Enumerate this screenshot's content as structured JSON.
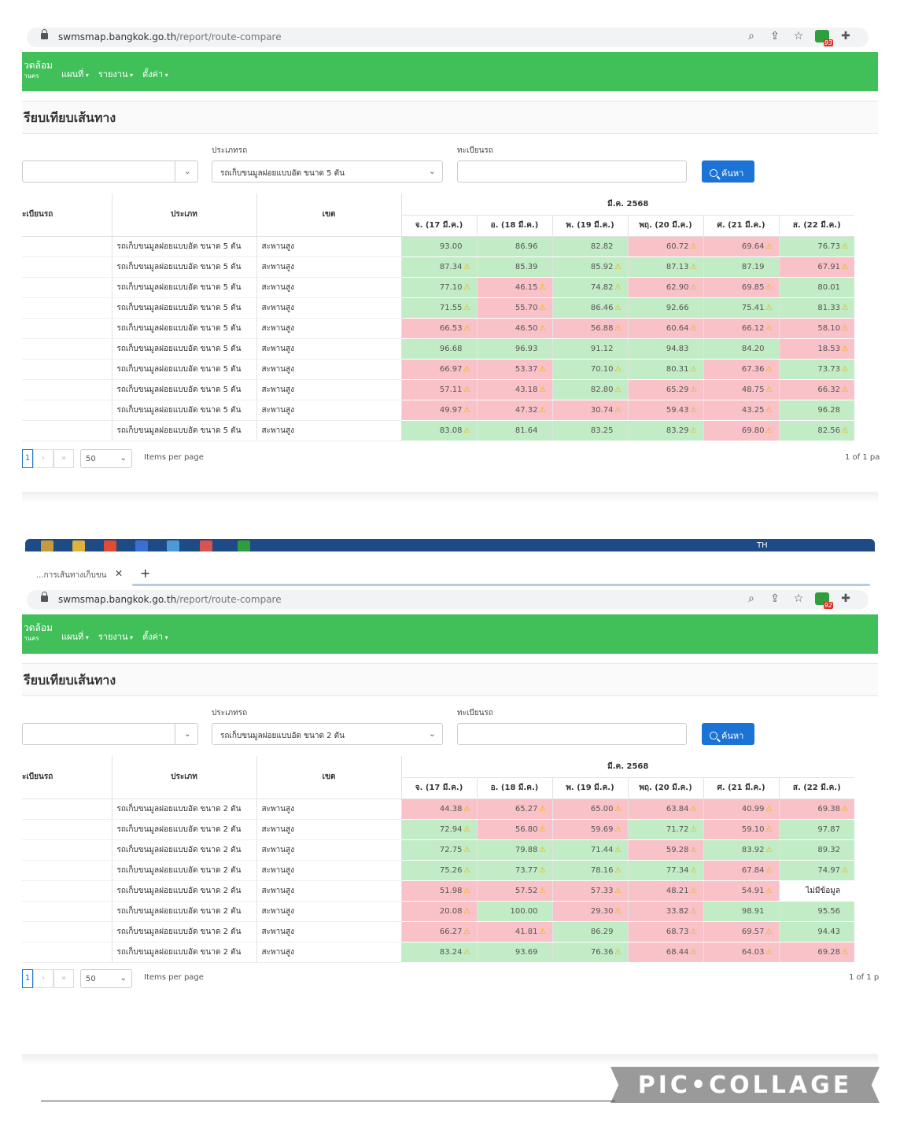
{
  "screenshots": [
    {
      "tab": null,
      "url_host": "swmsmap.bangkok.go.th",
      "url_path": "/report/route-compare",
      "ext_badge": "93",
      "brand": "วดล้อม",
      "brand_sub": "านคร",
      "menu": [
        "แผนที่",
        "รายงาน",
        "ตั้งค่า"
      ],
      "page_title": "รียบเทียบเส้นทาง",
      "labels": {
        "type": "ประเภทรถ",
        "plate": "ทะเบียนรถ"
      },
      "vehicle_type_value": "รถเก็บขนมูลฝอยแบบอัด ขนาด 5 ตัน",
      "search_label": "ค้นหา",
      "columns": {
        "plate": "ะเบียนรถ",
        "type": "ประเภท",
        "zone": "เขต",
        "month": "มี.ค. 2568",
        "days": [
          "จ. (17 มี.ค.)",
          "อ. (18 มี.ค.)",
          "พ. (19 มี.ค.)",
          "พฤ. (20 มี.ค.)",
          "ศ. (21 มี.ค.)",
          "ส. (22 มี.ค.)"
        ]
      },
      "rows": [
        {
          "type": "รถเก็บขนมูลฝอยแบบอัด ขนาด 5 ตัน",
          "zone": "สะพานสูง",
          "cells": [
            [
              "93.00",
              "g",
              false
            ],
            [
              "86.96",
              "g",
              false
            ],
            [
              "82.82",
              "g",
              false
            ],
            [
              "60.72",
              "r",
              true
            ],
            [
              "69.64",
              "r",
              true
            ],
            [
              "76.73",
              "g",
              true
            ]
          ]
        },
        {
          "type": "รถเก็บขนมูลฝอยแบบอัด ขนาด 5 ตัน",
          "zone": "สะพานสูง",
          "cells": [
            [
              "87.34",
              "g",
              true
            ],
            [
              "85.39",
              "g",
              false
            ],
            [
              "85.92",
              "g",
              true
            ],
            [
              "87.13",
              "g",
              true
            ],
            [
              "87.19",
              "g",
              false
            ],
            [
              "67.91",
              "r",
              true
            ]
          ]
        },
        {
          "type": "รถเก็บขนมูลฝอยแบบอัด ขนาด 5 ตัน",
          "zone": "สะพานสูง",
          "cells": [
            [
              "77.10",
              "g",
              true
            ],
            [
              "46.15",
              "r",
              true
            ],
            [
              "74.82",
              "g",
              true
            ],
            [
              "62.90",
              "r",
              true
            ],
            [
              "69.85",
              "r",
              true
            ],
            [
              "80.01",
              "g",
              false
            ]
          ]
        },
        {
          "type": "รถเก็บขนมูลฝอยแบบอัด ขนาด 5 ตัน",
          "zone": "สะพานสูง",
          "cells": [
            [
              "71.55",
              "g",
              true
            ],
            [
              "55.70",
              "r",
              true
            ],
            [
              "86.46",
              "g",
              true
            ],
            [
              "92.66",
              "g",
              false
            ],
            [
              "75.41",
              "g",
              true
            ],
            [
              "81.33",
              "g",
              true
            ]
          ]
        },
        {
          "type": "รถเก็บขนมูลฝอยแบบอัด ขนาด 5 ตัน",
          "zone": "สะพานสูง",
          "cells": [
            [
              "66.53",
              "r",
              true
            ],
            [
              "46.50",
              "r",
              true
            ],
            [
              "56.88",
              "r",
              true
            ],
            [
              "60.64",
              "r",
              true
            ],
            [
              "66.12",
              "r",
              true
            ],
            [
              "58.10",
              "r",
              true
            ]
          ]
        },
        {
          "type": "รถเก็บขนมูลฝอยแบบอัด ขนาด 5 ตัน",
          "zone": "สะพานสูง",
          "cells": [
            [
              "96.68",
              "g",
              false
            ],
            [
              "96.93",
              "g",
              false
            ],
            [
              "91.12",
              "g",
              false
            ],
            [
              "94.83",
              "g",
              false
            ],
            [
              "84.20",
              "g",
              false
            ],
            [
              "18.53",
              "r",
              true
            ]
          ]
        },
        {
          "type": "รถเก็บขนมูลฝอยแบบอัด ขนาด 5 ตัน",
          "zone": "สะพานสูง",
          "cells": [
            [
              "66.97",
              "r",
              true
            ],
            [
              "53.37",
              "r",
              true
            ],
            [
              "70.10",
              "g",
              true
            ],
            [
              "80.31",
              "g",
              true
            ],
            [
              "67.36",
              "r",
              true
            ],
            [
              "73.73",
              "g",
              true
            ]
          ]
        },
        {
          "type": "รถเก็บขนมูลฝอยแบบอัด ขนาด 5 ตัน",
          "zone": "สะพานสูง",
          "cells": [
            [
              "57.11",
              "r",
              true
            ],
            [
              "43.18",
              "r",
              true
            ],
            [
              "82.80",
              "g",
              true
            ],
            [
              "65.29",
              "r",
              true
            ],
            [
              "48.75",
              "r",
              true
            ],
            [
              "66.32",
              "r",
              true
            ]
          ]
        },
        {
          "type": "รถเก็บขนมูลฝอยแบบอัด ขนาด 5 ตัน",
          "zone": "สะพานสูง",
          "cells": [
            [
              "49.97",
              "r",
              true
            ],
            [
              "47.32",
              "r",
              true
            ],
            [
              "30.74",
              "r",
              true
            ],
            [
              "59.43",
              "r",
              true
            ],
            [
              "43.25",
              "r",
              true
            ],
            [
              "96.28",
              "g",
              false
            ]
          ]
        },
        {
          "type": "รถเก็บขนมูลฝอยแบบอัด ขนาด 5 ตัน",
          "zone": "สะพานสูง",
          "cells": [
            [
              "83.08",
              "g",
              true
            ],
            [
              "81.64",
              "g",
              false
            ],
            [
              "83.25",
              "g",
              false
            ],
            [
              "83.29",
              "g",
              true
            ],
            [
              "69.80",
              "r",
              true
            ],
            [
              "82.56",
              "g",
              true
            ]
          ]
        }
      ],
      "pager": {
        "page": "1",
        "next": "›",
        "last": "»",
        "per_page": "50",
        "items_per_page": "Items per page",
        "of": "1 of 1 pa"
      }
    },
    {
      "tab": "...การเส้นทางเก็บขน",
      "url_host": "swmsmap.bangkok.go.th",
      "url_path": "/report/route-compare",
      "ext_badge": "92",
      "brand": "วดล้อม",
      "brand_sub": "านคร",
      "menu": [
        "แผนที่",
        "รายงาน",
        "ตั้งค่า"
      ],
      "page_title": "รียบเทียบเส้นทาง",
      "labels": {
        "type": "ประเภทรถ",
        "plate": "ทะเบียนรถ"
      },
      "vehicle_type_value": "รถเก็บขนมูลฝอยแบบอัด ขนาด 2 ตัน",
      "search_label": "ค้นหา",
      "columns": {
        "plate": "ะเบียนรถ",
        "type": "ประเภท",
        "zone": "เขต",
        "month": "มี.ค. 2568",
        "days": [
          "จ. (17 มี.ค.)",
          "อ. (18 มี.ค.)",
          "พ. (19 มี.ค.)",
          "พฤ. (20 มี.ค.)",
          "ศ. (21 มี.ค.)",
          "ส. (22 มี.ค.)"
        ]
      },
      "rows": [
        {
          "type": "รถเก็บขนมูลฝอยแบบอัด ขนาด 2 ตัน",
          "zone": "สะพานสูง",
          "cells": [
            [
              "44.38",
              "r",
              true
            ],
            [
              "65.27",
              "r",
              true
            ],
            [
              "65.00",
              "r",
              true
            ],
            [
              "63.84",
              "r",
              true
            ],
            [
              "40.99",
              "r",
              true
            ],
            [
              "69.38",
              "r",
              true
            ]
          ]
        },
        {
          "type": "รถเก็บขนมูลฝอยแบบอัด ขนาด 2 ตัน",
          "zone": "สะพานสูง",
          "cells": [
            [
              "72.94",
              "g",
              true
            ],
            [
              "56.80",
              "r",
              true
            ],
            [
              "59.69",
              "r",
              true
            ],
            [
              "71.72",
              "g",
              true
            ],
            [
              "59.10",
              "r",
              true
            ],
            [
              "97.87",
              "g",
              false
            ]
          ]
        },
        {
          "type": "รถเก็บขนมูลฝอยแบบอัด ขนาด 2 ตัน",
          "zone": "สะพานสูง",
          "cells": [
            [
              "72.75",
              "g",
              true
            ],
            [
              "79.88",
              "g",
              true
            ],
            [
              "71.44",
              "g",
              true
            ],
            [
              "59.28",
              "r",
              true
            ],
            [
              "83.92",
              "g",
              true
            ],
            [
              "89.32",
              "g",
              false
            ]
          ]
        },
        {
          "type": "รถเก็บขนมูลฝอยแบบอัด ขนาด 2 ตัน",
          "zone": "สะพานสูง",
          "cells": [
            [
              "75.26",
              "g",
              true
            ],
            [
              "73.77",
              "g",
              true
            ],
            [
              "78.16",
              "g",
              true
            ],
            [
              "77.34",
              "g",
              true
            ],
            [
              "67.84",
              "r",
              true
            ],
            [
              "74.97",
              "g",
              true
            ]
          ]
        },
        {
          "type": "รถเก็บขนมูลฝอยแบบอัด ขนาด 2 ตัน",
          "zone": "สะพานสูง",
          "cells": [
            [
              "51.98",
              "r",
              true
            ],
            [
              "57.52",
              "r",
              true
            ],
            [
              "57.33",
              "r",
              true
            ],
            [
              "48.21",
              "r",
              true
            ],
            [
              "54.91",
              "r",
              true
            ],
            [
              "ไม่มีข้อมูล",
              "na",
              false
            ]
          ]
        },
        {
          "type": "รถเก็บขนมูลฝอยแบบอัด ขนาด 2 ตัน",
          "zone": "สะพานสูง",
          "cells": [
            [
              "20.08",
              "r",
              true
            ],
            [
              "100.00",
              "g",
              false
            ],
            [
              "29.30",
              "r",
              true
            ],
            [
              "33.82",
              "r",
              true
            ],
            [
              "98.91",
              "g",
              false
            ],
            [
              "95.56",
              "g",
              false
            ]
          ]
        },
        {
          "type": "รถเก็บขนมูลฝอยแบบอัด ขนาด 2 ตัน",
          "zone": "สะพานสูง",
          "cells": [
            [
              "66.27",
              "r",
              true
            ],
            [
              "41.81",
              "r",
              true
            ],
            [
              "86.29",
              "g",
              false
            ],
            [
              "68.73",
              "r",
              true
            ],
            [
              "69.57",
              "r",
              true
            ],
            [
              "94.43",
              "g",
              false
            ]
          ]
        },
        {
          "type": "รถเก็บขนมูลฝอยแบบอัด ขนาด 2 ตัน",
          "zone": "สะพานสูง",
          "cells": [
            [
              "83.24",
              "g",
              true
            ],
            [
              "93.69",
              "g",
              false
            ],
            [
              "76.36",
              "g",
              true
            ],
            [
              "68.44",
              "r",
              true
            ],
            [
              "64.03",
              "r",
              true
            ],
            [
              "69.28",
              "r",
              true
            ]
          ]
        }
      ],
      "pager": {
        "page": "1",
        "next": "›",
        "last": "»",
        "per_page": "50",
        "items_per_page": "Items per page",
        "of": "1 of 1 p"
      }
    }
  ],
  "taskbar_lang": "TH",
  "watermark": "PIC•COLLAGE",
  "colors": {
    "nav": "#41c05a",
    "good": "#c2ecc5",
    "bad": "#f8c2c8",
    "button": "#1b73d6",
    "warn": "#f0b400"
  },
  "icons": [
    "lock-icon",
    "zoom-icon",
    "share-icon",
    "star-icon",
    "extension-icon",
    "puzzle-icon",
    "chevron-down-icon",
    "search-icon",
    "warning-icon"
  ]
}
